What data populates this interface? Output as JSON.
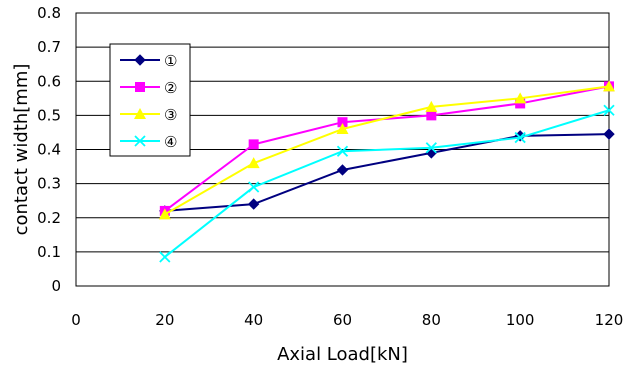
{
  "chart_data": {
    "type": "line",
    "title": "",
    "xlabel": "Axial Load[kN]",
    "ylabel": "contact width[mm]",
    "xlim": [
      0,
      120
    ],
    "ylim": [
      0,
      0.8
    ],
    "xticks": [
      "0",
      "20",
      "40",
      "60",
      "80",
      "100",
      "120"
    ],
    "yticks": [
      "0",
      "0.1",
      "0.2",
      "0.3",
      "0.4",
      "0.5",
      "0.6",
      "0.7",
      "0.8"
    ],
    "grid": "horizontal",
    "legend_position": "top-left",
    "x": [
      20,
      40,
      60,
      80,
      100,
      120
    ],
    "series": [
      {
        "name": "①",
        "color": "#000080",
        "marker": "diamond",
        "values": [
          0.22,
          0.24,
          0.34,
          0.39,
          0.44,
          0.445
        ]
      },
      {
        "name": "②",
        "color": "#ff00ff",
        "marker": "square",
        "values": [
          0.22,
          0.415,
          0.48,
          0.5,
          0.535,
          0.585
        ]
      },
      {
        "name": "③",
        "color": "#ffff00",
        "marker": "triangle",
        "values": [
          0.21,
          0.36,
          0.46,
          0.525,
          0.55,
          0.585
        ]
      },
      {
        "name": "④",
        "color": "#00ffff",
        "marker": "x",
        "values": [
          0.085,
          0.29,
          0.395,
          0.405,
          0.435,
          0.515
        ]
      }
    ]
  }
}
